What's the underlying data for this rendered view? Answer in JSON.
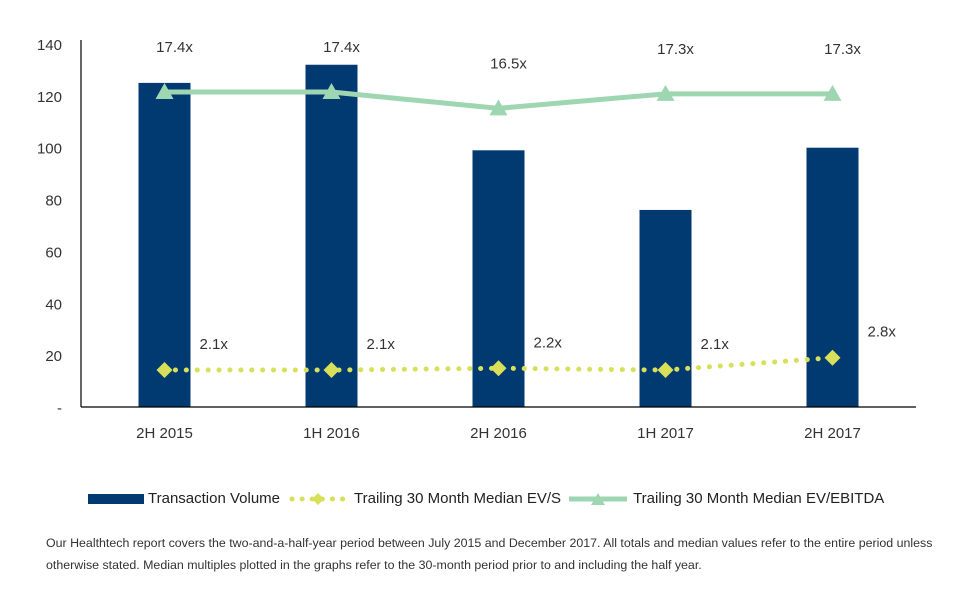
{
  "chart_data": {
    "type": "bar",
    "title": "",
    "xlabel": "",
    "ylabel": "",
    "ylim": [
      0,
      140
    ],
    "yticks": [
      "-",
      "20",
      "40",
      "60",
      "80",
      "100",
      "120",
      "140"
    ],
    "y2lim": [
      0,
      20
    ],
    "grid": false,
    "legend_position": "bottom",
    "categories": [
      "2H 2015",
      "1H 2016",
      "2H 2016",
      "1H 2017",
      "2H 2017"
    ],
    "series": [
      {
        "name": "Transaction Volume",
        "type": "bar",
        "axis": "primary",
        "color": "#003a70",
        "values": [
          125,
          132,
          99,
          76,
          100
        ]
      },
      {
        "name": "Trailing 30 Month Median EV/S",
        "type": "line",
        "style": "dotted",
        "marker": "diamond",
        "axis": "secondary",
        "color": "#d8e05a",
        "values": [
          2.1,
          2.1,
          2.2,
          2.1,
          2.8
        ],
        "labels": [
          "2.1x",
          "2.1x",
          "2.2x",
          "2.1x",
          "2.8x"
        ]
      },
      {
        "name": "Trailing 30 Month Median EV/EBITDA",
        "type": "line",
        "style": "solid",
        "marker": "triangle",
        "axis": "secondary",
        "color": "#9fd6b2",
        "values": [
          17.4,
          17.4,
          16.5,
          17.3,
          17.3
        ],
        "labels": [
          "17.4x",
          "17.4x",
          "16.5x",
          "17.3x",
          "17.3x"
        ]
      }
    ]
  },
  "footnote": "Our Healthtech report covers the two-and-a-half-year period between July 2015 and December 2017. All totals and median values refer to the entire period unless otherwise stated. Median multiples plotted in the graphs refer to the 30-month period prior to and including the half year."
}
